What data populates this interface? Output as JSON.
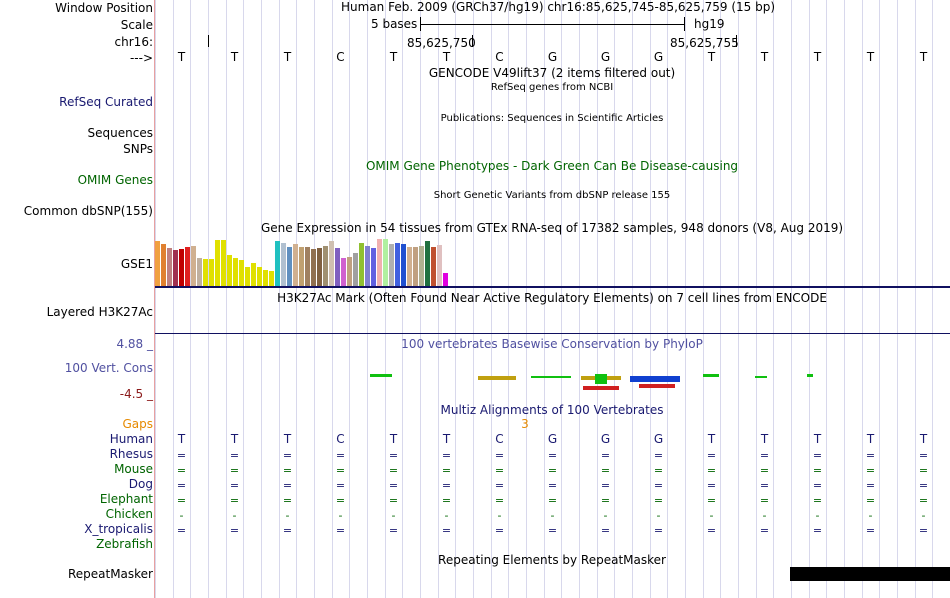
{
  "colors": {
    "navy": "#191970",
    "dark_green": "#006400",
    "orange": "#e68a00",
    "dark_red": "#8b1a1a",
    "phylop": "#5050a0",
    "grid": "#d8d8ec",
    "sidebar_border": "#e8a0a0"
  },
  "labels": {
    "window_position": "Window Position",
    "scale": "Scale",
    "chrom": "chr16:",
    "strand": "--->",
    "refseq": "RefSeq Curated",
    "sequences": "Sequences",
    "snps": "SNPs",
    "omim": "OMIM Genes",
    "dbsnp": "Common dbSNP(155)",
    "gse1": "GSE1",
    "h3k27ac": "Layered H3K27Ac",
    "cons_max": "4.88 _",
    "cons_label": "100 Vert. Cons",
    "cons_min": "-4.5 _",
    "gaps": "Gaps",
    "human": "Human",
    "rhesus": "Rhesus",
    "mouse": "Mouse",
    "dog": "Dog",
    "elephant": "Elephant",
    "chicken": "Chicken",
    "x_tropicalis": "X_tropicalis",
    "zebrafish": "Zebrafish",
    "repeatmasker": "RepeatMasker"
  },
  "header": {
    "position": "Human Feb. 2009 (GRCh37/hg19)   chr16:85,625,745-85,625,759 (15 bp)",
    "scale_bases": "5 bases",
    "scale_assembly": "hg19",
    "coord_1": "85,625,750",
    "coord_2": "85,625,755"
  },
  "bases": [
    "T",
    "T",
    "T",
    "C",
    "T",
    "T",
    "C",
    "G",
    "G",
    "G",
    "T",
    "T",
    "T",
    "T",
    "T"
  ],
  "tracks": {
    "gencode": "GENCODE V49lift37 (2 items filtered out)",
    "refseq": "RefSeq genes from NCBI",
    "publications": "Publications: Sequences in Scientific Articles",
    "omim": "OMIM Gene Phenotypes - Dark Green Can Be Disease-causing",
    "dbsnp": "Short Genetic Variants from dbSNP release 155",
    "gtex": "Gene Expression in 54 tissues from GTEx RNA-seq of 17382 samples, 948 donors (V8, Aug 2019)",
    "h3k27ac": "H3K27Ac Mark (Often Found Near Active Regulatory Elements) on 7 cell lines from ENCODE",
    "phylop": "100 vertebrates Basewise Conservation by PhyloP",
    "multiz": "Multiz Alignments of 100 Vertebrates",
    "gaps_value": "3",
    "repeatmasker": "Repeating Elements by RepeatMasker"
  },
  "alignment": {
    "rhesus": "=",
    "mouse": "=",
    "dog": "=",
    "elephant": "=",
    "chicken": "-",
    "x_tropicalis": "="
  },
  "gtex_bars": [
    {
      "v": 0.95,
      "c": "#f0a040"
    },
    {
      "v": 0.9,
      "c": "#e08030"
    },
    {
      "v": 0.8,
      "c": "#c08080"
    },
    {
      "v": 0.76,
      "c": "#a03050"
    },
    {
      "v": 0.78,
      "c": "#c00000"
    },
    {
      "v": 0.82,
      "c": "#e02020"
    },
    {
      "v": 0.86,
      "c": "#d0b090"
    },
    {
      "v": 0.6,
      "c": "#c0b0a0"
    },
    {
      "v": 0.58,
      "c": "#e0e000"
    },
    {
      "v": 0.58,
      "c": "#e0e000"
    },
    {
      "v": 0.98,
      "c": "#e0e000"
    },
    {
      "v": 0.98,
      "c": "#e0e000"
    },
    {
      "v": 0.65,
      "c": "#e0e000"
    },
    {
      "v": 0.6,
      "c": "#e0e000"
    },
    {
      "v": 0.55,
      "c": "#e0e000"
    },
    {
      "v": 0.4,
      "c": "#e0e000"
    },
    {
      "v": 0.48,
      "c": "#e0e000"
    },
    {
      "v": 0.4,
      "c": "#e0e000"
    },
    {
      "v": 0.35,
      "c": "#e0e000"
    },
    {
      "v": 0.32,
      "c": "#e0e000"
    },
    {
      "v": 0.95,
      "c": "#20c0c0"
    },
    {
      "v": 0.92,
      "c": "#b0c0d0"
    },
    {
      "v": 0.82,
      "c": "#6090c0"
    },
    {
      "v": 0.9,
      "c": "#d0b090"
    },
    {
      "v": 0.84,
      "c": "#c0a070"
    },
    {
      "v": 0.82,
      "c": "#a08060"
    },
    {
      "v": 0.78,
      "c": "#907050"
    },
    {
      "v": 0.8,
      "c": "#806040"
    },
    {
      "v": 0.85,
      "c": "#a09070"
    },
    {
      "v": 0.95,
      "c": "#d0c0b0"
    },
    {
      "v": 0.8,
      "c": "#8060c0"
    },
    {
      "v": 0.6,
      "c": "#d060d0"
    },
    {
      "v": 0.62,
      "c": "#c0a080"
    },
    {
      "v": 0.7,
      "c": "#a0a0a0"
    },
    {
      "v": 0.92,
      "c": "#90c030"
    },
    {
      "v": 0.85,
      "c": "#8080d0"
    },
    {
      "v": 0.8,
      "c": "#6060e0"
    },
    {
      "v": 1.0,
      "c": "#f0b0b0"
    },
    {
      "v": 1.0,
      "c": "#b0f0a0"
    },
    {
      "v": 0.9,
      "c": "#b0b0b0"
    },
    {
      "v": 0.92,
      "c": "#4060e0"
    },
    {
      "v": 0.9,
      "c": "#2050d0"
    },
    {
      "v": 0.84,
      "c": "#d0b090"
    },
    {
      "v": 0.82,
      "c": "#c0a080"
    },
    {
      "v": 0.86,
      "c": "#b0b090"
    },
    {
      "v": 0.96,
      "c": "#207040"
    },
    {
      "v": 0.84,
      "c": "#c05030"
    },
    {
      "v": 0.88,
      "c": "#e0c0c0"
    },
    {
      "v": 0.28,
      "c": "#e000e0"
    }
  ]
}
